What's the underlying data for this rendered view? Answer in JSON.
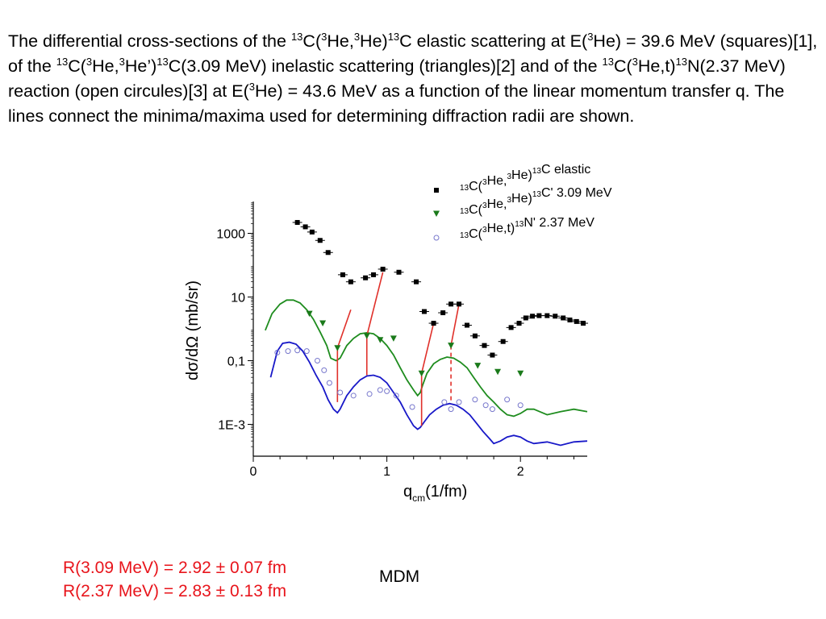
{
  "caption": {
    "p1": "The differential cross-sections of the ",
    "s1": "13",
    "p2": "C(",
    "s2": "3",
    "p3": "He,",
    "s3": "3",
    "p4": "He)",
    "s4": "13",
    "p5": "C elastic scattering at E(",
    "s5": "3",
    "p6": "He) = 39.6 MeV (squares)[1], of the ",
    "s6": "13",
    "p7": "C(",
    "s7": "3",
    "p8": "He,",
    "s8": "3",
    "p9": "He’)",
    "s9": "13",
    "p10": "C(3.09 MeV) inelastic scattering  (triangles)[2] and of the ",
    "s10": "13",
    "p11": "C(",
    "s11": "3",
    "p12": "He,t)",
    "s12": "13",
    "p13": "N(2.37 MeV) reaction (open circules)[3] at E(",
    "s13": "3",
    "p14": "He) = 43.6 MeV as a function of the linear momentum transfer q. The lines connect the minima/maxima used for determining diffraction radii are shown."
  },
  "results": {
    "line1": "R(3.09 MeV) = 2.92 ± 0.07 fm",
    "line2": "R(2.37 MeV) = 2.83 ± 0.13 fm"
  },
  "mdm_label": "MDM",
  "chart_data": {
    "type": "scatter",
    "xlabel": "q",
    "xlabel_sub": "cm",
    "xlabel_unit": "(1/fm)",
    "ylabel": "dσ/dΩ (mb/sr)",
    "xlim": [
      0,
      2.5
    ],
    "ylim": [
      0.0001,
      10000
    ],
    "yscale": "log",
    "x_ticks": [
      0,
      1,
      2
    ],
    "x_tick_labels": [
      "0",
      "1",
      "2"
    ],
    "y_ticks": [
      0.001,
      0.1,
      10,
      1000
    ],
    "y_tick_labels": [
      "1E-3",
      "0,1",
      "10",
      "1000"
    ],
    "legend_position": "top-right",
    "colors": {
      "elastic": "#000000",
      "inelastic": "#1a7a1a",
      "reaction": "#7777cc",
      "red_lines": "#e0302a",
      "green_curve": "#1e8c1e",
      "blue_curve": "#1818c8"
    },
    "series": [
      {
        "name_a": "13",
        "name_b": "C(",
        "name_c": "3",
        "name_d": "He,",
        "name_e": "3",
        "name_f": "He)",
        "name_g": "13",
        "name_h": "C elastic",
        "marker": "square",
        "x": [
          0.33,
          0.39,
          0.44,
          0.5,
          0.56,
          0.67,
          0.73,
          0.84,
          0.9,
          0.97,
          1.09,
          1.22,
          1.28,
          1.35,
          1.42,
          1.48,
          1.54,
          1.6,
          1.66,
          1.73,
          1.79,
          1.87,
          1.93,
          1.99,
          2.04,
          2.09,
          2.14,
          2.2,
          2.26,
          2.32,
          2.37,
          2.42,
          2.47
        ],
        "y": [
          2200,
          1600,
          1100,
          600,
          250,
          50,
          30,
          40,
          50,
          75,
          60,
          30,
          3.5,
          1.5,
          3.2,
          6,
          6,
          1.3,
          0.6,
          0.3,
          0.15,
          0.4,
          1.1,
          1.5,
          2.2,
          2.5,
          2.6,
          2.6,
          2.5,
          2.2,
          1.9,
          1.7,
          1.5
        ]
      },
      {
        "name_a": "13",
        "name_b": "C(",
        "name_c": "3",
        "name_d": "He,",
        "name_e": "3",
        "name_f": "He)",
        "name_g": "13",
        "name_h": "C' 3.09 MeV",
        "marker": "triangle-down",
        "x": [
          0.42,
          0.52,
          0.63,
          0.85,
          0.95,
          1.05,
          1.26,
          1.48,
          1.68,
          1.83,
          2.0
        ],
        "y": [
          3.0,
          1.5,
          0.25,
          0.6,
          0.45,
          0.5,
          0.04,
          0.3,
          0.07,
          0.045,
          0.04
        ]
      },
      {
        "name_a": "13",
        "name_b": "C(",
        "name_c": "3",
        "name_d": "He,t)",
        "name_e": "",
        "name_f": "",
        "name_g": "13",
        "name_h": "N' 2.37 MeV",
        "marker": "circle-open",
        "x": [
          0.18,
          0.26,
          0.33,
          0.4,
          0.48,
          0.53,
          0.57,
          0.65,
          0.75,
          0.87,
          0.95,
          1.0,
          1.07,
          1.19,
          1.43,
          1.48,
          1.54,
          1.66,
          1.74,
          1.79,
          1.9,
          2.0
        ],
        "y": [
          0.18,
          0.2,
          0.21,
          0.2,
          0.1,
          0.05,
          0.02,
          0.01,
          0.008,
          0.009,
          0.012,
          0.011,
          0.008,
          0.0035,
          0.005,
          0.003,
          0.005,
          0.006,
          0.004,
          0.003,
          0.006,
          0.004
        ]
      }
    ],
    "curves": [
      {
        "color_key": "green_curve",
        "x": [
          0.09,
          0.14,
          0.2,
          0.25,
          0.3,
          0.35,
          0.4,
          0.45,
          0.5,
          0.55,
          0.58,
          0.62,
          0.65,
          0.7,
          0.75,
          0.8,
          0.85,
          0.9,
          0.95,
          1.0,
          1.05,
          1.1,
          1.15,
          1.2,
          1.23,
          1.25,
          1.27,
          1.3,
          1.35,
          1.4,
          1.45,
          1.5,
          1.55,
          1.6,
          1.65,
          1.7,
          1.75,
          1.8,
          1.85,
          1.9,
          1.95,
          2.0,
          2.05,
          2.1,
          2.2,
          2.3,
          2.4,
          2.5
        ],
        "y": [
          0.9,
          3,
          6,
          8,
          8,
          6.5,
          4,
          2,
          0.8,
          0.3,
          0.12,
          0.1,
          0.12,
          0.3,
          0.5,
          0.7,
          0.75,
          0.7,
          0.5,
          0.3,
          0.15,
          0.06,
          0.025,
          0.012,
          0.008,
          0.01,
          0.018,
          0.04,
          0.08,
          0.11,
          0.13,
          0.12,
          0.09,
          0.06,
          0.03,
          0.015,
          0.008,
          0.005,
          0.003,
          0.002,
          0.0018,
          0.0022,
          0.003,
          0.003,
          0.002,
          0.0025,
          0.003,
          0.0025
        ]
      },
      {
        "color_key": "blue_curve",
        "x": [
          0.13,
          0.18,
          0.22,
          0.27,
          0.32,
          0.37,
          0.42,
          0.47,
          0.52,
          0.56,
          0.6,
          0.63,
          0.65,
          0.7,
          0.75,
          0.8,
          0.85,
          0.9,
          0.95,
          1.0,
          1.05,
          1.1,
          1.15,
          1.2,
          1.23,
          1.25,
          1.28,
          1.32,
          1.37,
          1.42,
          1.47,
          1.52,
          1.57,
          1.62,
          1.67,
          1.72,
          1.77,
          1.8,
          1.85,
          1.9,
          1.95,
          2.0,
          2.05,
          2.1,
          2.2,
          2.3,
          2.4,
          2.5
        ],
        "y": [
          0.03,
          0.2,
          0.35,
          0.38,
          0.33,
          0.2,
          0.09,
          0.035,
          0.015,
          0.006,
          0.003,
          0.0023,
          0.003,
          0.008,
          0.015,
          0.025,
          0.033,
          0.035,
          0.03,
          0.02,
          0.01,
          0.005,
          0.002,
          0.0009,
          0.0007,
          0.0008,
          0.0012,
          0.002,
          0.003,
          0.004,
          0.0045,
          0.004,
          0.003,
          0.002,
          0.0011,
          0.0006,
          0.00035,
          0.00025,
          0.0003,
          0.0004,
          0.00045,
          0.0004,
          0.0003,
          0.00025,
          0.00028,
          0.00022,
          0.00028,
          0.0003
        ]
      }
    ],
    "connector_lines": [
      {
        "x": [
          0.63,
          0.63
        ],
        "y": [
          0.25,
          0.005
        ],
        "dashed": false
      },
      {
        "x": [
          0.63,
          0.73
        ],
        "y": [
          0.25,
          4.0
        ],
        "dashed": false
      },
      {
        "x": [
          0.85,
          0.85
        ],
        "y": [
          0.6,
          0.035
        ],
        "dashed": false
      },
      {
        "x": [
          0.85,
          0.97
        ],
        "y": [
          0.6,
          60
        ],
        "dashed": false
      },
      {
        "x": [
          1.26,
          1.26
        ],
        "y": [
          0.04,
          0.0009
        ],
        "dashed": false
      },
      {
        "x": [
          1.26,
          1.35
        ],
        "y": [
          0.04,
          1.5
        ],
        "dashed": false
      },
      {
        "x": [
          1.48,
          1.48
        ],
        "y": [
          0.3,
          0.0045
        ],
        "dashed": true
      },
      {
        "x": [
          1.48,
          1.54
        ],
        "y": [
          0.3,
          6
        ],
        "dashed": false
      }
    ]
  }
}
